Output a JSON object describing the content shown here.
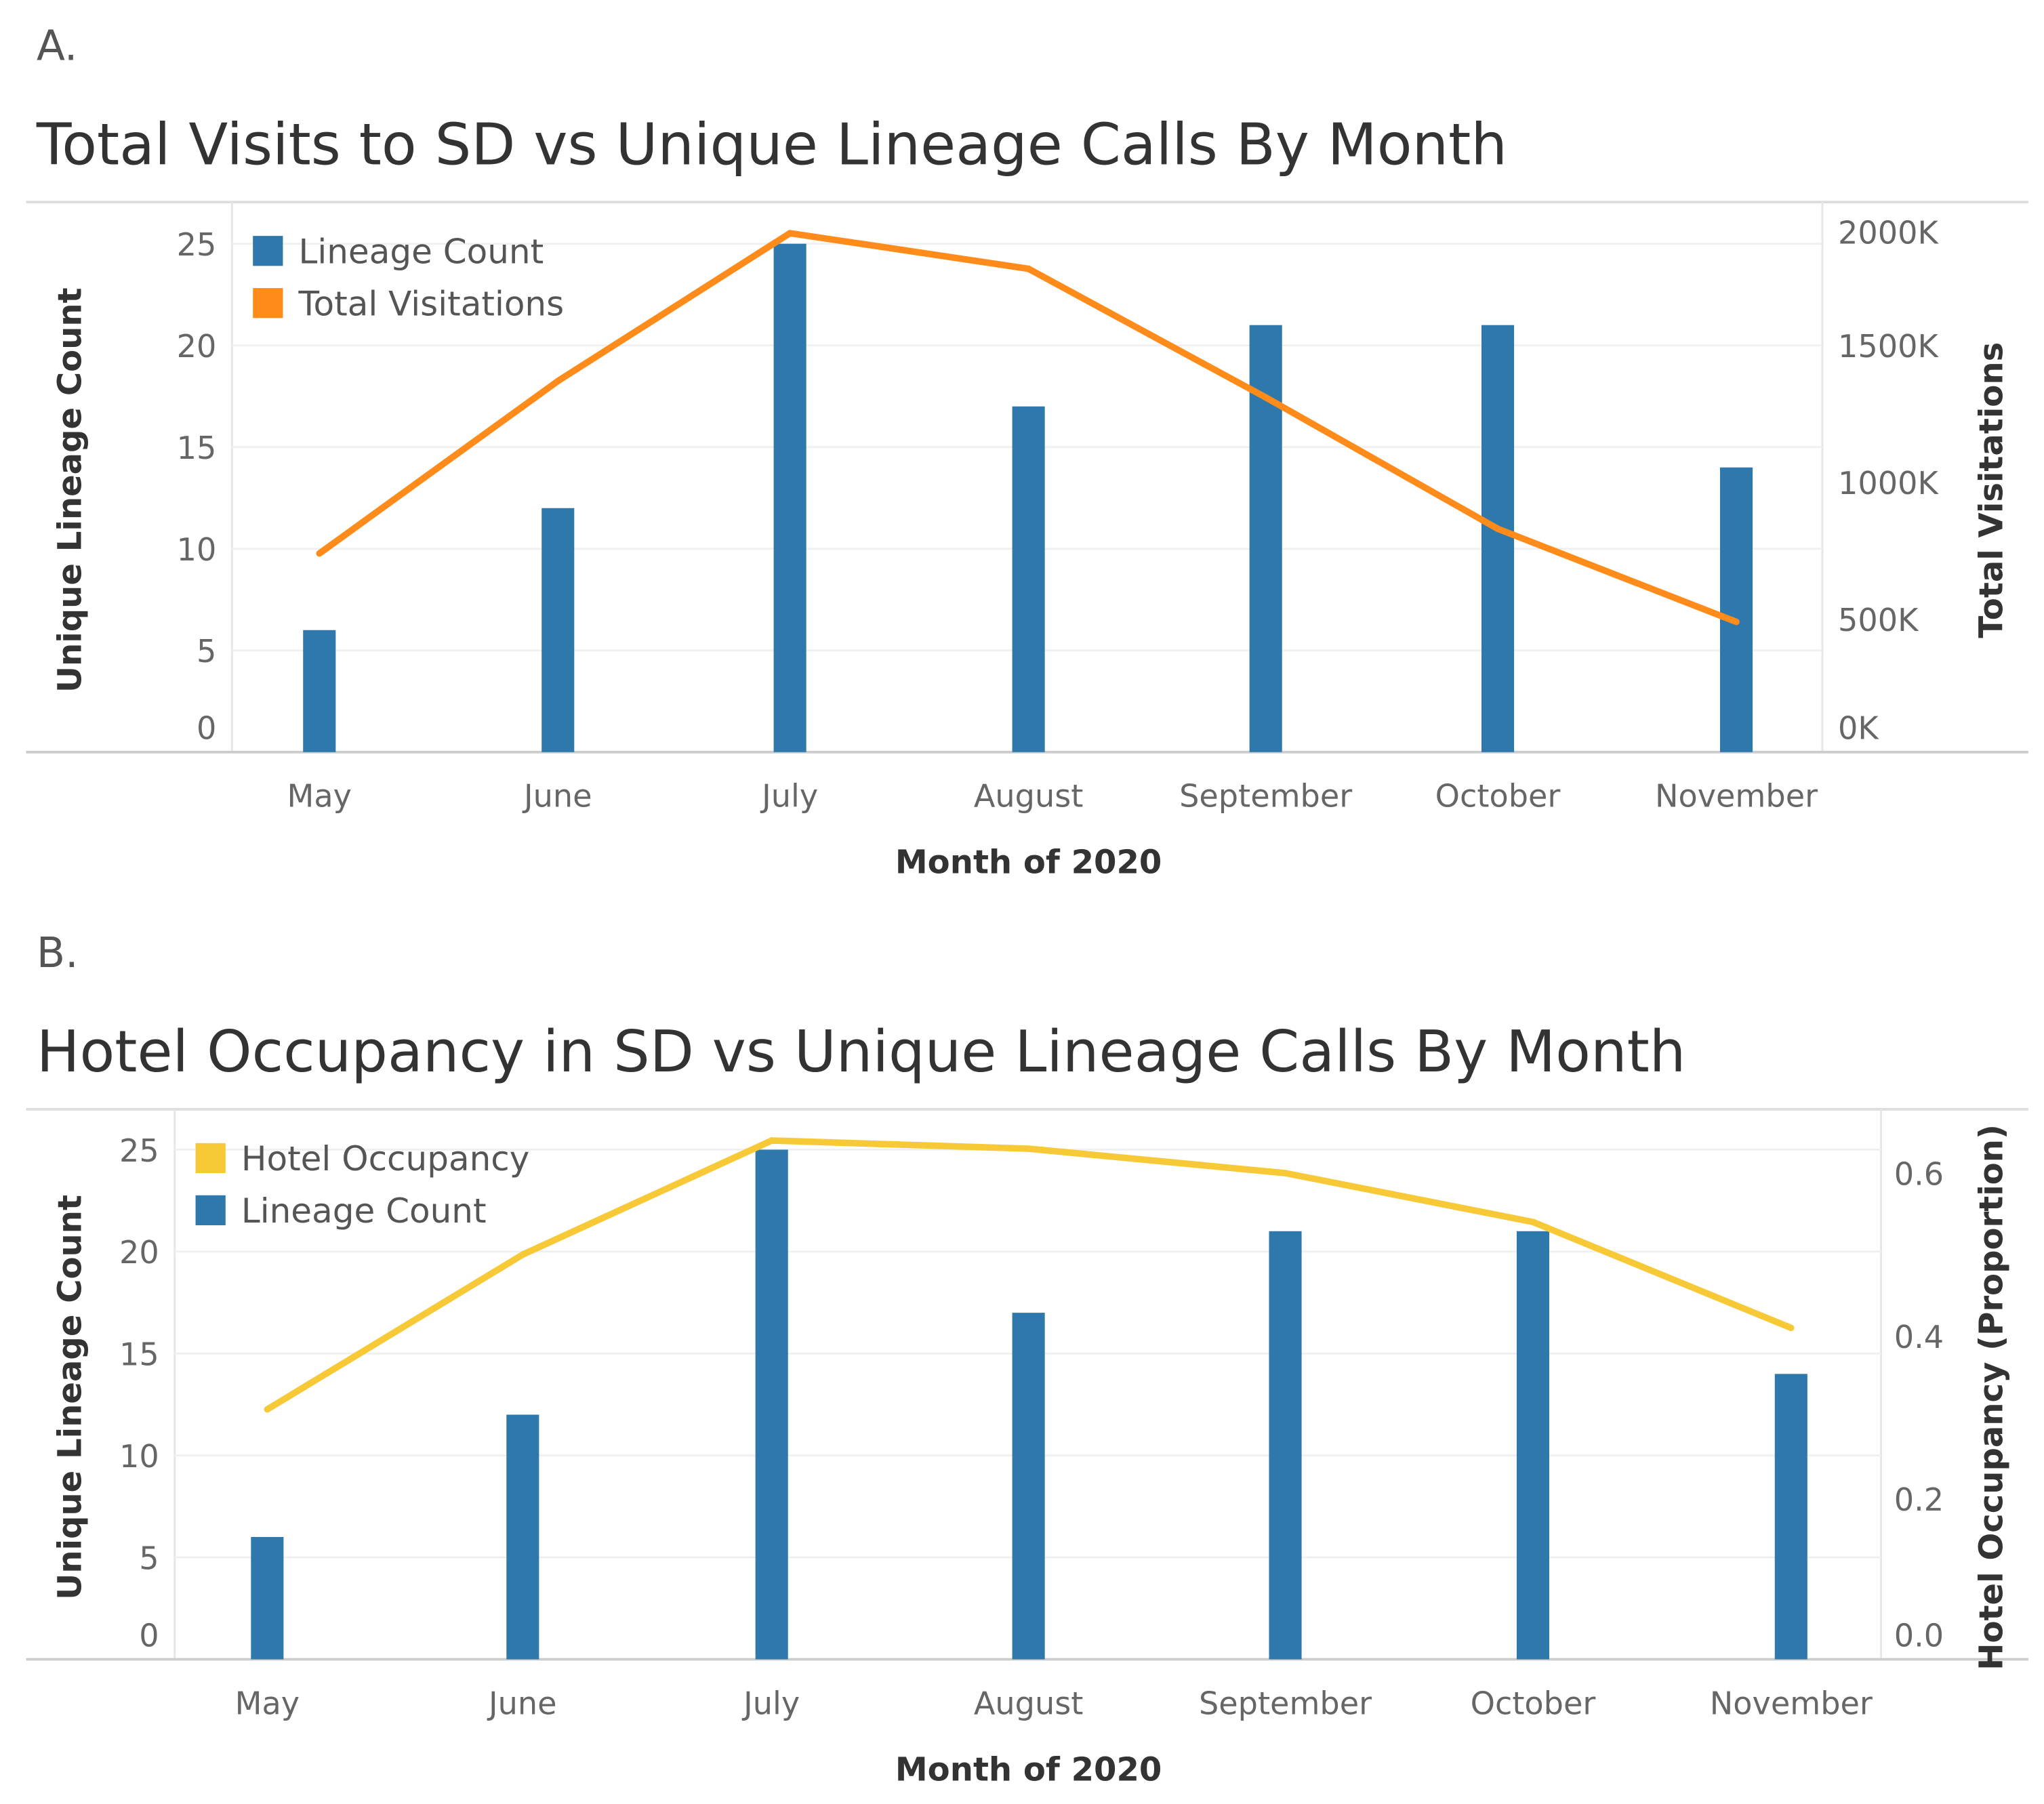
{
  "chart_data": [
    {
      "panel_label": "A.",
      "type": "bar+line",
      "title": "Total Visits to SD vs Unique Lineage Calls By Month",
      "xlabel": "Month of 2020",
      "ylabel": "Unique Lineage Count",
      "y2label": "Total Visitations",
      "categories": [
        "May",
        "June",
        "July",
        "August",
        "September",
        "October",
        "November"
      ],
      "ylim": [
        0,
        25
      ],
      "yticks": [
        0,
        5,
        10,
        15,
        20,
        25
      ],
      "y2lim": [
        0,
        2000
      ],
      "y2ticks": [
        0,
        500,
        1000,
        1500,
        2000
      ],
      "y2tick_labels": [
        "0K",
        "500K",
        "1000K",
        "1500K",
        "2000K"
      ],
      "grid": true,
      "legend_position": "top-left",
      "legend": [
        "Lineage Count",
        "Total Visitations"
      ],
      "series": [
        {
          "name": "Lineage Count",
          "kind": "bar",
          "axis": "left",
          "color": "#2e78ab",
          "values": [
            6,
            12,
            25,
            17,
            21,
            21,
            14
          ]
        },
        {
          "name": "Total Visitations",
          "kind": "line",
          "axis": "right",
          "unit": "K",
          "color": "#ff8c1a",
          "values": [
            740,
            1370,
            1910,
            1780,
            1310,
            830,
            490
          ]
        }
      ]
    },
    {
      "panel_label": "B.",
      "type": "bar+line",
      "title": "Hotel Occupancy in SD vs Unique Lineage Calls By Month",
      "xlabel": "Month of 2020",
      "ylabel": "Unique Lineage Count",
      "y2label": "Hotel Occupancy (Proportion)",
      "categories": [
        "May",
        "June",
        "July",
        "August",
        "September",
        "October",
        "November"
      ],
      "ylim": [
        0,
        25
      ],
      "yticks": [
        0,
        5,
        10,
        15,
        20,
        25
      ],
      "y2lim": [
        0,
        0.6
      ],
      "y2ticks": [
        0,
        0.2,
        0.4,
        0.6
      ],
      "y2tick_labels": [
        "0.0",
        "0.2",
        "0.4",
        "0.6"
      ],
      "grid": true,
      "legend_position": "top-left",
      "legend": [
        "Hotel Occupancy",
        "Lineage Count"
      ],
      "series": [
        {
          "name": "Lineage Count",
          "kind": "bar",
          "axis": "left",
          "color": "#2e78ab",
          "values": [
            6,
            12,
            25,
            17,
            21,
            21,
            14
          ]
        },
        {
          "name": "Hotel Occupancy",
          "kind": "line",
          "axis": "right",
          "color": "#f7c936",
          "values": [
            0.31,
            0.5,
            0.64,
            0.63,
            0.6,
            0.54,
            0.41
          ]
        }
      ]
    }
  ]
}
